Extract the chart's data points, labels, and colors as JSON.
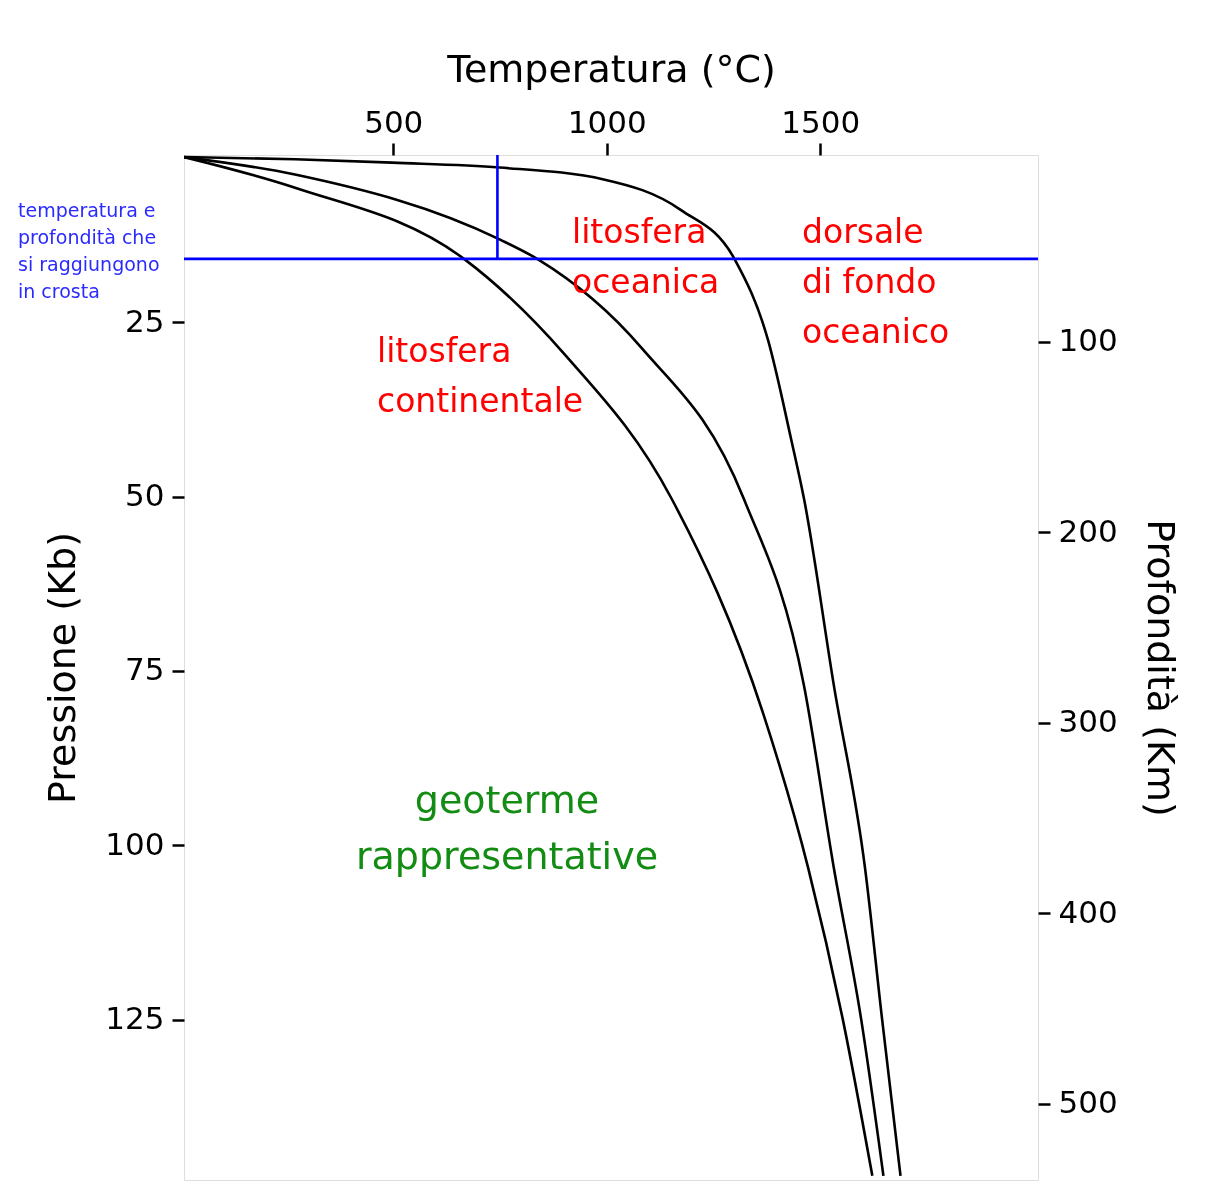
{
  "chart_data": {
    "type": "line",
    "xlabel": "Temperatura (°C)",
    "ylabel": "Pressione (Kb)",
    "y2label": "Profondità (Km)",
    "xlim": [
      10,
      2010
    ],
    "xticks": [
      500,
      1000,
      1500
    ],
    "ylim": [
      148,
      1
    ],
    "yticks": [
      25,
      50,
      75,
      100,
      125
    ],
    "y2lim": [
      540,
      2
    ],
    "y2ticks": [
      100,
      200,
      300,
      400,
      500
    ],
    "grid": false,
    "legend": false,
    "marker": "none",
    "line_style": "solid",
    "series": [
      {
        "color": "#000000",
        "x": [
          10,
          270,
          668,
          903,
          1152,
          1368,
          1472,
          1553,
          1622
        ],
        "values": [
          1.3,
          5.7,
          16.0,
          29.7,
          50.3,
          81.4,
          103.3,
          125,
          147.4
        ]
      },
      {
        "color": "#000000",
        "x": [
          10,
          270,
          749,
          840,
          1082,
          1321,
          1462,
          1532,
          1596,
          1648
        ],
        "values": [
          1.3,
          3.8,
          13.1,
          16.0,
          28.7,
          50.3,
          77.1,
          103.3,
          125,
          147.4
        ]
      },
      {
        "color": "#000000",
        "x": [
          10,
          270,
          498,
          749,
          993,
          1174,
          1300,
          1378,
          1432,
          1462,
          1532,
          1605,
          1645,
          1688
        ],
        "values": [
          1.3,
          1.6,
          2.1,
          2.8,
          4.5,
          8.9,
          16.0,
          27.6,
          41.8,
          50.3,
          77.1,
          103.3,
          125,
          147.4
        ]
      },
      {
        "color": "#0000ff",
        "x": [
          744,
          744
        ],
        "values": [
          1,
          15.9
        ]
      }
    ],
    "ref_lines": [
      {
        "axis": "y",
        "value": 15.9,
        "color": "#0000ff"
      }
    ],
    "annotations": [
      "litosfera\noceanica",
      "dorsale\ndi fondo\noceanico",
      "litosfera\ncontinentale",
      "geoterme\nrappresentative",
      "temperatura e\nprofondità che\nsi raggiungono\nin crosta"
    ]
  }
}
